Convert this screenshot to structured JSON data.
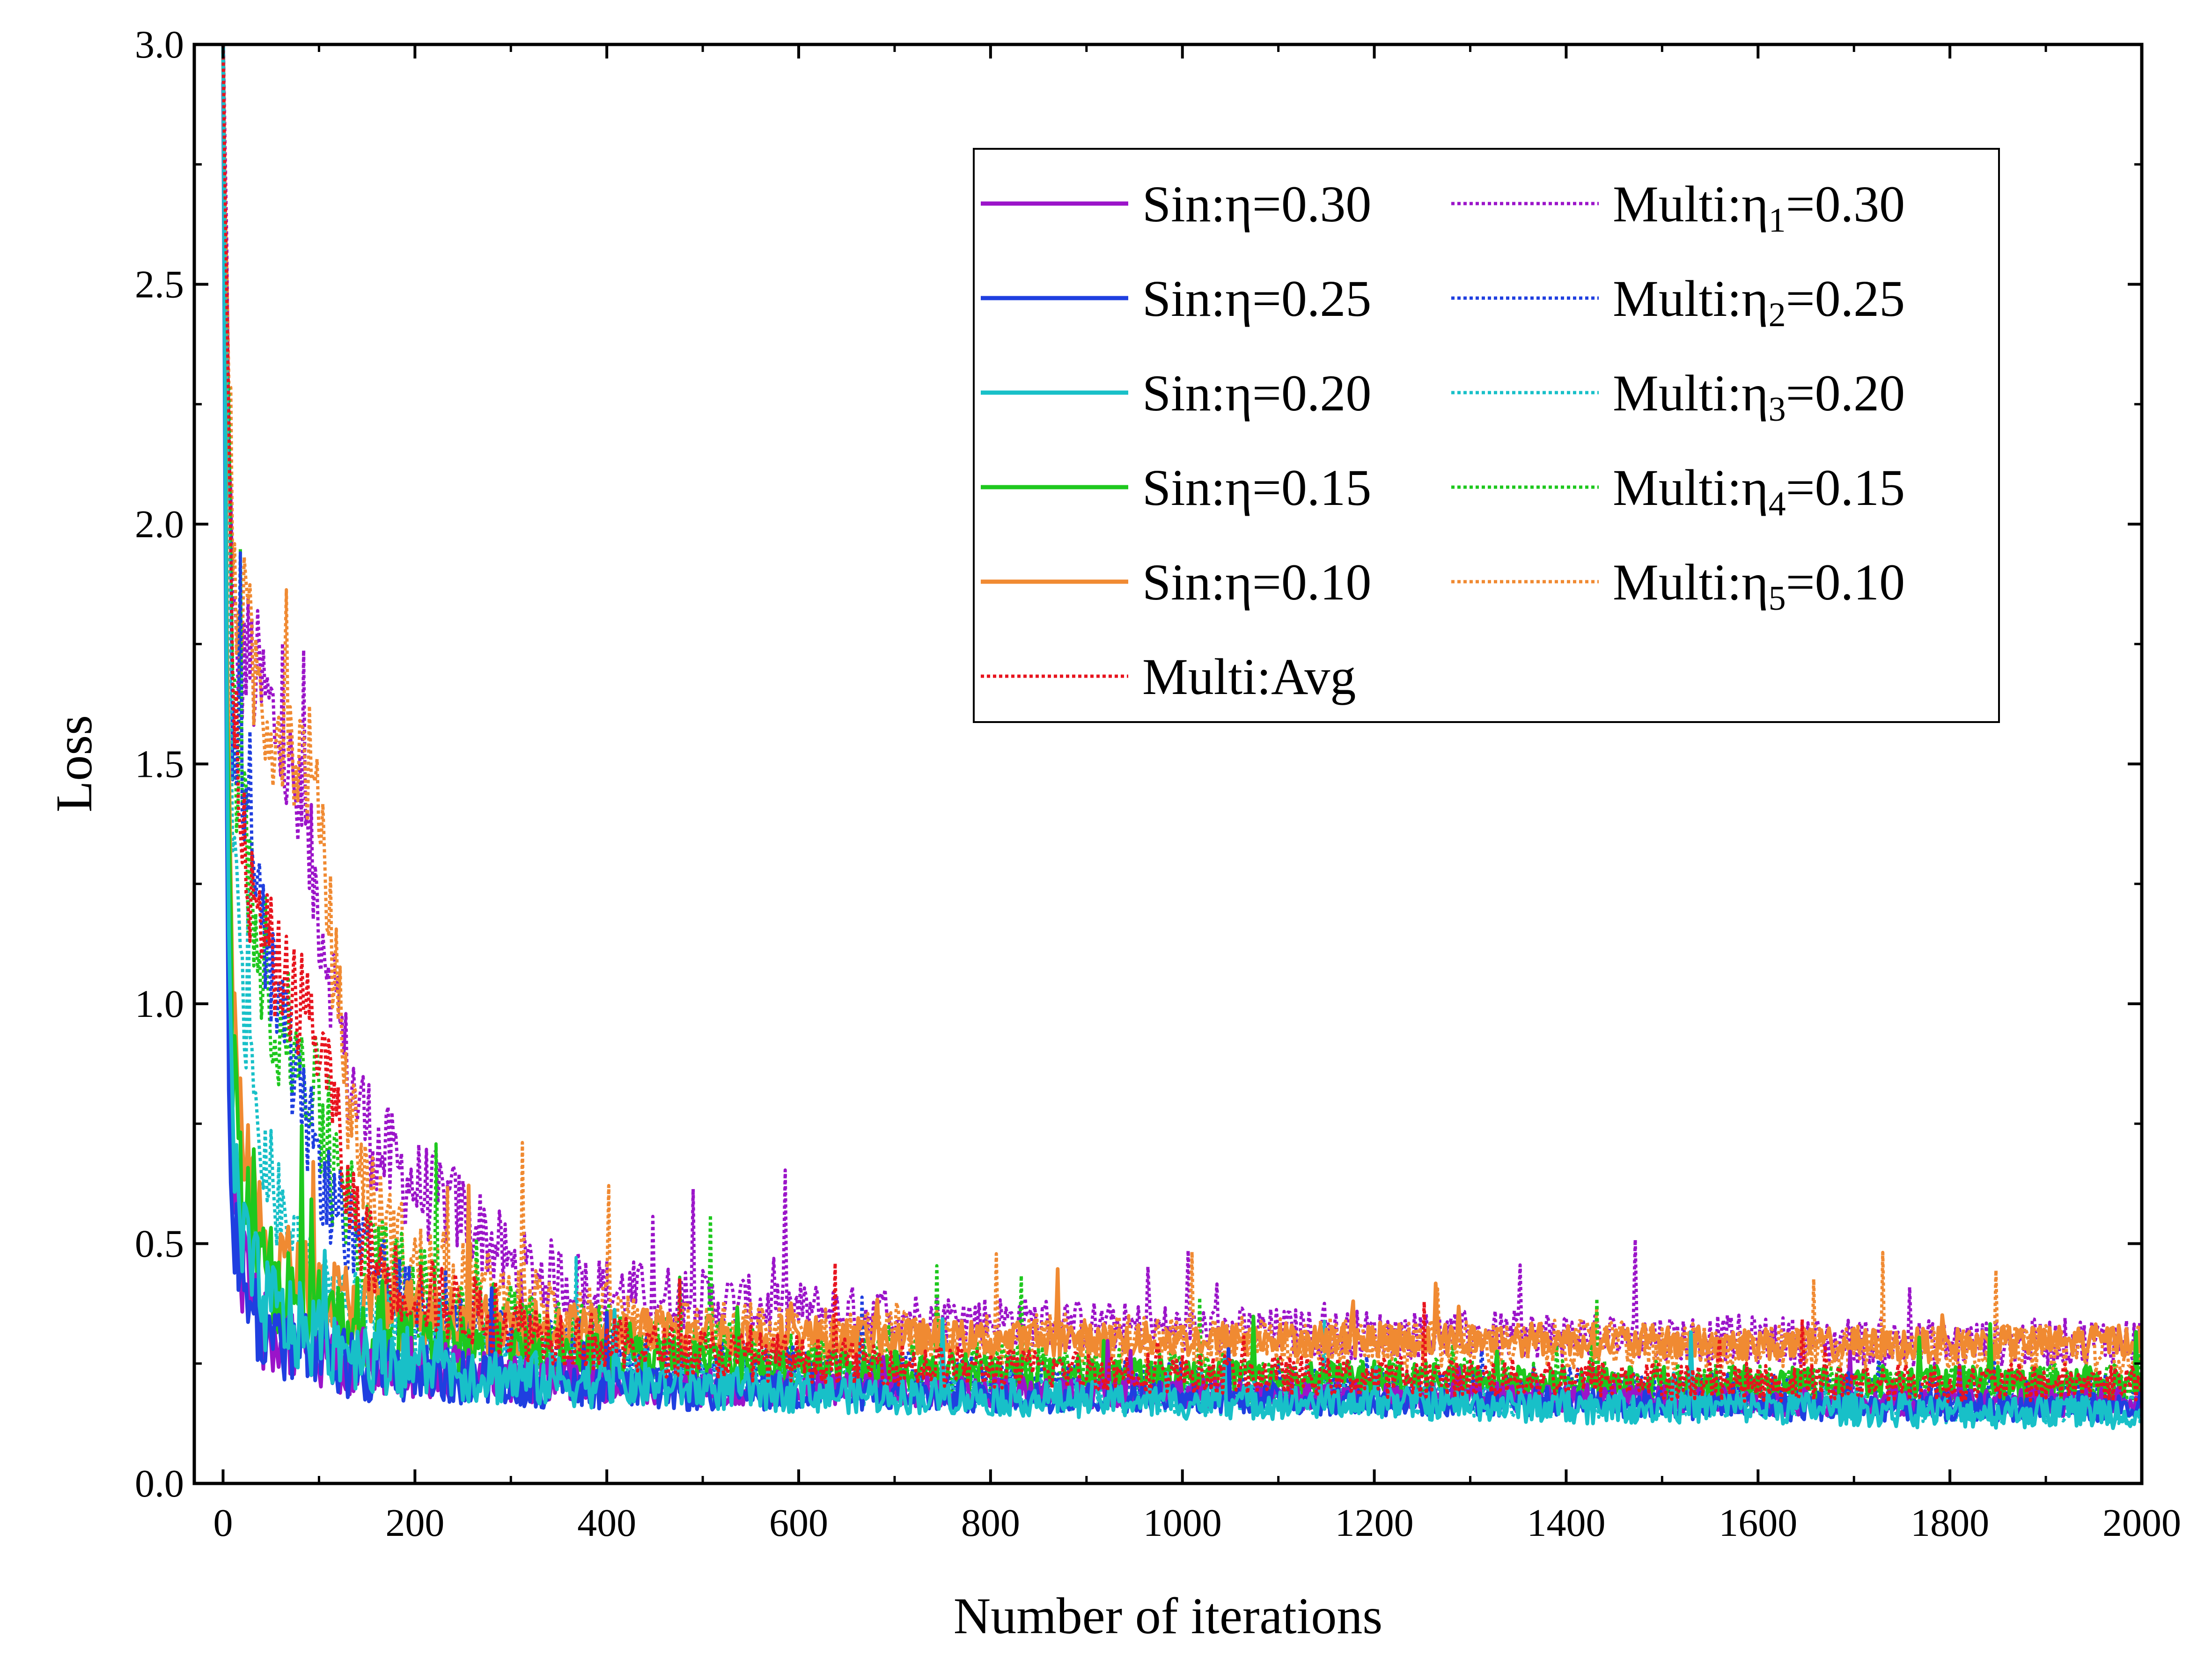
{
  "chart_data": {
    "type": "line",
    "xlabel": "Number of iterations",
    "ylabel": "Loss",
    "xlim": [
      -30,
      2000
    ],
    "ylim": [
      0,
      3.0
    ],
    "xticks": [
      "0",
      "200",
      "400",
      "600",
      "800",
      "1000",
      "1200",
      "1400",
      "1600",
      "1800",
      "2000"
    ],
    "yticks": [
      "0.0",
      "0.5",
      "1.0",
      "1.5",
      "2.0",
      "2.5",
      "3.0"
    ],
    "grid": false,
    "legend_position": "top-right",
    "legend_columns": 2,
    "series": [
      {
        "name": "Sin:η=0.30",
        "legend": {
          "pre": "Sin:η=0.30",
          "sub": "",
          "post": ""
        },
        "color": "#9b14c9",
        "style": "solid",
        "points": [
          [
            0,
            3.0
          ],
          [
            5,
            1.0
          ],
          [
            10,
            0.6
          ],
          [
            20,
            0.45
          ],
          [
            40,
            0.33
          ],
          [
            80,
            0.29
          ],
          [
            120,
            0.26
          ],
          [
            200,
            0.24
          ],
          [
            300,
            0.22
          ],
          [
            400,
            0.21
          ],
          [
            500,
            0.2
          ],
          [
            600,
            0.2
          ],
          [
            800,
            0.19
          ],
          [
            1000,
            0.19
          ],
          [
            1200,
            0.18
          ],
          [
            1400,
            0.18
          ],
          [
            1600,
            0.17
          ],
          [
            1800,
            0.17
          ],
          [
            2000,
            0.17
          ]
        ],
        "noise": 0.03
      },
      {
        "name": "Sin:η=0.25",
        "legend": {
          "pre": "Sin:η=0.25",
          "sub": "",
          "post": ""
        },
        "color": "#1f3fe0",
        "style": "solid",
        "points": [
          [
            0,
            3.0
          ],
          [
            5,
            0.9
          ],
          [
            10,
            0.55
          ],
          [
            20,
            0.42
          ],
          [
            40,
            0.32
          ],
          [
            80,
            0.28
          ],
          [
            120,
            0.25
          ],
          [
            200,
            0.23
          ],
          [
            300,
            0.21
          ],
          [
            400,
            0.2
          ],
          [
            500,
            0.19
          ],
          [
            600,
            0.19
          ],
          [
            800,
            0.18
          ],
          [
            1000,
            0.18
          ],
          [
            1200,
            0.17
          ],
          [
            1400,
            0.17
          ],
          [
            1600,
            0.16
          ],
          [
            1800,
            0.16
          ],
          [
            2000,
            0.16
          ]
        ],
        "noise": 0.03
      },
      {
        "name": "Sin:η=0.20",
        "legend": {
          "pre": "Sin:η=0.20",
          "sub": "",
          "post": ""
        },
        "color": "#18c0c8",
        "style": "solid",
        "points": [
          [
            0,
            3.0
          ],
          [
            5,
            1.2
          ],
          [
            10,
            0.7
          ],
          [
            20,
            0.5
          ],
          [
            40,
            0.38
          ],
          [
            80,
            0.32
          ],
          [
            120,
            0.29
          ],
          [
            200,
            0.25
          ],
          [
            300,
            0.22
          ],
          [
            400,
            0.21
          ],
          [
            500,
            0.2
          ],
          [
            600,
            0.19
          ],
          [
            800,
            0.18
          ],
          [
            1000,
            0.17
          ],
          [
            1200,
            0.17
          ],
          [
            1400,
            0.16
          ],
          [
            1600,
            0.16
          ],
          [
            1800,
            0.15
          ],
          [
            2000,
            0.15
          ]
        ],
        "noise": 0.035
      },
      {
        "name": "Sin:η=0.15",
        "legend": {
          "pre": "Sin:η=0.15",
          "sub": "",
          "post": ""
        },
        "color": "#1ec81e",
        "style": "solid",
        "points": [
          [
            0,
            3.0
          ],
          [
            5,
            1.4
          ],
          [
            10,
            0.9
          ],
          [
            20,
            0.6
          ],
          [
            40,
            0.45
          ],
          [
            80,
            0.37
          ],
          [
            120,
            0.33
          ],
          [
            200,
            0.29
          ],
          [
            300,
            0.27
          ],
          [
            400,
            0.26
          ],
          [
            500,
            0.25
          ],
          [
            600,
            0.24
          ],
          [
            800,
            0.23
          ],
          [
            1000,
            0.22
          ],
          [
            1200,
            0.22
          ],
          [
            1400,
            0.21
          ],
          [
            1600,
            0.21
          ],
          [
            1800,
            0.21
          ],
          [
            2000,
            0.21
          ]
        ],
        "noise": 0.035
      },
      {
        "name": "Sin:η=0.10",
        "legend": {
          "pre": "Sin:η=0.10",
          "sub": "",
          "post": ""
        },
        "color": "#f08a32",
        "style": "solid",
        "points": [
          [
            0,
            3.0
          ],
          [
            5,
            1.6
          ],
          [
            10,
            1.1
          ],
          [
            20,
            0.7
          ],
          [
            40,
            0.5
          ],
          [
            80,
            0.42
          ],
          [
            120,
            0.38
          ],
          [
            200,
            0.35
          ],
          [
            300,
            0.33
          ],
          [
            400,
            0.32
          ],
          [
            500,
            0.31
          ],
          [
            600,
            0.31
          ],
          [
            800,
            0.3
          ],
          [
            1000,
            0.3
          ],
          [
            1200,
            0.3
          ],
          [
            1400,
            0.3
          ],
          [
            1600,
            0.29
          ],
          [
            1800,
            0.29
          ],
          [
            2000,
            0.3
          ]
        ],
        "noise": 0.035
      },
      {
        "name": "Multi:η1=0.30",
        "legend": {
          "pre": "Multi:η",
          "sub": "1",
          "post": "=0.30"
        },
        "color": "#9b14c9",
        "style": "dotted",
        "points": [
          [
            0,
            3.0
          ],
          [
            10,
            1.75
          ],
          [
            30,
            1.7
          ],
          [
            60,
            1.55
          ],
          [
            90,
            1.3
          ],
          [
            110,
            1.1
          ],
          [
            130,
            0.85
          ],
          [
            160,
            0.7
          ],
          [
            200,
            0.62
          ],
          [
            260,
            0.55
          ],
          [
            300,
            0.45
          ],
          [
            400,
            0.4
          ],
          [
            500,
            0.38
          ],
          [
            600,
            0.36
          ],
          [
            700,
            0.35
          ],
          [
            800,
            0.34
          ],
          [
            1000,
            0.32
          ],
          [
            1200,
            0.31
          ],
          [
            1400,
            0.31
          ],
          [
            1600,
            0.3
          ],
          [
            1800,
            0.29
          ],
          [
            2000,
            0.3
          ]
        ],
        "noise": 0.05
      },
      {
        "name": "Multi:η2=0.25",
        "legend": {
          "pre": "Multi:η",
          "sub": "2",
          "post": "=0.25"
        },
        "color": "#1f3fe0",
        "style": "dotted",
        "points": [
          [
            0,
            3.0
          ],
          [
            10,
            1.6
          ],
          [
            30,
            1.3
          ],
          [
            50,
            1.05
          ],
          [
            80,
            0.8
          ],
          [
            110,
            0.6
          ],
          [
            150,
            0.45
          ],
          [
            200,
            0.36
          ],
          [
            300,
            0.3
          ],
          [
            400,
            0.27
          ],
          [
            500,
            0.25
          ],
          [
            600,
            0.24
          ],
          [
            800,
            0.22
          ],
          [
            1000,
            0.21
          ],
          [
            1200,
            0.2
          ],
          [
            1400,
            0.2
          ],
          [
            1600,
            0.19
          ],
          [
            1800,
            0.19
          ],
          [
            2000,
            0.19
          ]
        ],
        "noise": 0.04
      },
      {
        "name": "Multi:η3=0.20",
        "legend": {
          "pre": "Multi:η",
          "sub": "3",
          "post": "=0.20"
        },
        "color": "#18c0c8",
        "style": "dotted",
        "points": [
          [
            0,
            3.0
          ],
          [
            10,
            1.3
          ],
          [
            30,
            0.8
          ],
          [
            60,
            0.55
          ],
          [
            100,
            0.42
          ],
          [
            150,
            0.35
          ],
          [
            200,
            0.3
          ],
          [
            300,
            0.26
          ],
          [
            400,
            0.24
          ],
          [
            500,
            0.22
          ],
          [
            600,
            0.21
          ],
          [
            800,
            0.19
          ],
          [
            1000,
            0.18
          ],
          [
            1200,
            0.18
          ],
          [
            1400,
            0.17
          ],
          [
            1600,
            0.17
          ],
          [
            1800,
            0.16
          ],
          [
            2000,
            0.16
          ]
        ],
        "noise": 0.035
      },
      {
        "name": "Multi:η4=0.15",
        "legend": {
          "pre": "Multi:η",
          "sub": "4",
          "post": "=0.15"
        },
        "color": "#1ec81e",
        "style": "dotted",
        "points": [
          [
            0,
            3.0
          ],
          [
            10,
            1.6
          ],
          [
            30,
            1.2
          ],
          [
            60,
            0.95
          ],
          [
            90,
            0.85
          ],
          [
            120,
            0.6
          ],
          [
            160,
            0.45
          ],
          [
            200,
            0.4
          ],
          [
            300,
            0.33
          ],
          [
            400,
            0.3
          ],
          [
            500,
            0.28
          ],
          [
            600,
            0.26
          ],
          [
            800,
            0.24
          ],
          [
            1000,
            0.22
          ],
          [
            1200,
            0.21
          ],
          [
            1400,
            0.21
          ],
          [
            1600,
            0.2
          ],
          [
            1800,
            0.2
          ],
          [
            2000,
            0.2
          ]
        ],
        "noise": 0.05
      },
      {
        "name": "Multi:η5=0.10",
        "legend": {
          "pre": "Multi:η",
          "sub": "5",
          "post": "=0.10"
        },
        "color": "#f08a32",
        "style": "dotted",
        "points": [
          [
            0,
            3.0
          ],
          [
            10,
            1.9
          ],
          [
            30,
            1.7
          ],
          [
            60,
            1.55
          ],
          [
            90,
            1.5
          ],
          [
            110,
            1.2
          ],
          [
            130,
            0.8
          ],
          [
            160,
            0.55
          ],
          [
            200,
            0.45
          ],
          [
            300,
            0.38
          ],
          [
            400,
            0.34
          ],
          [
            500,
            0.32
          ],
          [
            600,
            0.31
          ],
          [
            800,
            0.3
          ],
          [
            1000,
            0.3
          ],
          [
            1200,
            0.29
          ],
          [
            1400,
            0.29
          ],
          [
            1600,
            0.28
          ],
          [
            1800,
            0.28
          ],
          [
            2000,
            0.28
          ]
        ],
        "noise": 0.05
      },
      {
        "name": "Multi:Avg",
        "legend": {
          "pre": "Multi:Avg",
          "sub": "",
          "post": ""
        },
        "color": "#e8141e",
        "style": "dotted",
        "points": [
          [
            0,
            3.0
          ],
          [
            10,
            1.6
          ],
          [
            30,
            1.2
          ],
          [
            60,
            1.05
          ],
          [
            90,
            0.98
          ],
          [
            110,
            0.85
          ],
          [
            130,
            0.6
          ],
          [
            160,
            0.45
          ],
          [
            200,
            0.4
          ],
          [
            300,
            0.33
          ],
          [
            400,
            0.29
          ],
          [
            500,
            0.27
          ],
          [
            600,
            0.26
          ],
          [
            800,
            0.24
          ],
          [
            1000,
            0.23
          ],
          [
            1200,
            0.22
          ],
          [
            1400,
            0.22
          ],
          [
            1600,
            0.21
          ],
          [
            1800,
            0.21
          ],
          [
            2000,
            0.21
          ]
        ],
        "noise": 0.04
      }
    ]
  }
}
